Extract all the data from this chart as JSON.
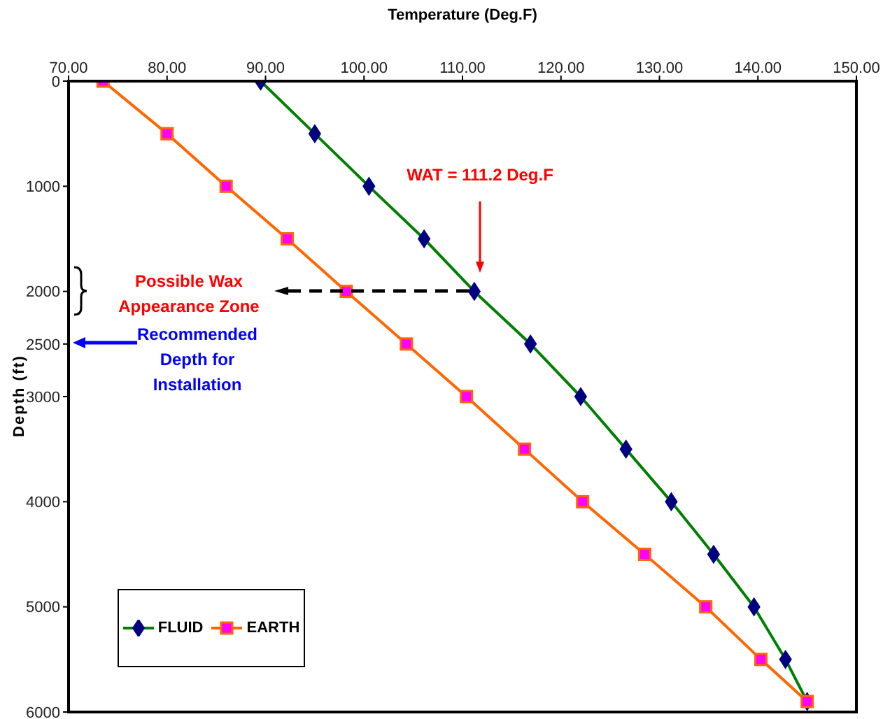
{
  "chart_data": {
    "type": "line",
    "xlabel": "Temperature (Deg.F)",
    "ylabel": "Depth (ft)",
    "xlim": [
      70,
      150
    ],
    "xticks": [
      {
        "value": 70,
        "label": "70.00"
      },
      {
        "value": 80,
        "label": "80.00"
      },
      {
        "value": 90,
        "label": "90.00"
      },
      {
        "value": 100,
        "label": "100.00"
      },
      {
        "value": 110,
        "label": "110.00"
      },
      {
        "value": 120,
        "label": "120.00"
      },
      {
        "value": 130,
        "label": "130.00"
      },
      {
        "value": 140,
        "label": "140.00"
      },
      {
        "value": 150,
        "label": "150.00"
      }
    ],
    "ylim": [
      6000,
      0
    ],
    "yticks": [
      0,
      1000,
      2000,
      2500,
      3000,
      4000,
      5000,
      6000
    ],
    "series": [
      {
        "name": "FLUID",
        "color": "#008000",
        "marker": "diamond",
        "x": [
          89.5,
          95.0,
          100.5,
          106.1,
          111.2,
          116.9,
          122.0,
          126.6,
          131.2,
          135.5,
          139.6,
          142.8,
          145.0
        ],
        "values": [
          0,
          500,
          1000,
          1500,
          2000,
          2500,
          3000,
          3500,
          4000,
          4500,
          5000,
          5500,
          5900
        ]
      },
      {
        "name": "EARTH",
        "color": "#ff6600",
        "marker": "square",
        "x": [
          73.5,
          80.0,
          86.0,
          92.2,
          98.2,
          104.3,
          110.4,
          116.3,
          122.2,
          128.5,
          134.7,
          140.3,
          145.0
        ],
        "values": [
          0,
          500,
          1000,
          1500,
          2000,
          2500,
          3000,
          3500,
          4000,
          4500,
          5000,
          5500,
          5900
        ]
      }
    ],
    "annotations": [
      "WAT = 111.2 Deg.F",
      "Possible Wax Appearance Zone",
      "Recommended Depth for Installation"
    ],
    "grid": false,
    "legend": "bottom left",
    "line_style": "solid"
  }
}
